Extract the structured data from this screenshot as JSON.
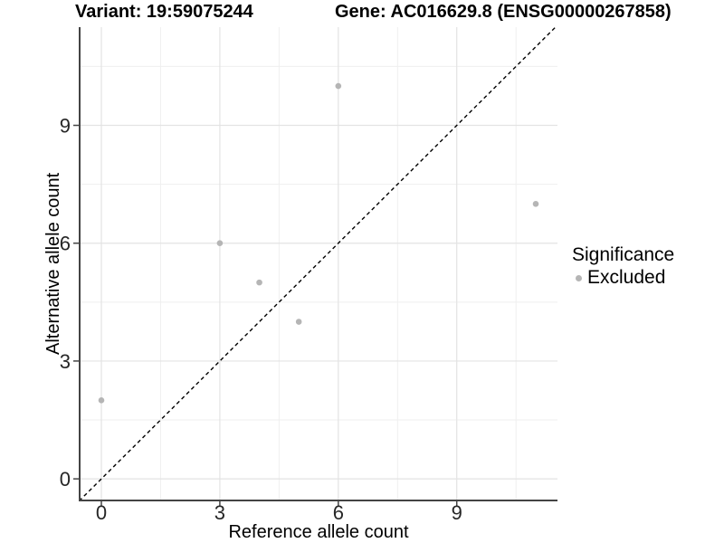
{
  "chart_data": {
    "type": "scatter",
    "title_left": "Variant: 19:59075244",
    "title_right": "Gene: AC016629.8 (ENSG00000267858)",
    "xlabel": "Reference allele count",
    "ylabel": "Alternative allele count",
    "x_ticks": [
      0,
      3,
      6,
      9
    ],
    "y_ticks": [
      0,
      3,
      6,
      9
    ],
    "x_minor_gridlines": [
      1.5,
      4.5,
      7.5,
      10.5
    ],
    "y_minor_gridlines": [
      1.5,
      4.5,
      7.5,
      10.5
    ],
    "xlim": [
      -0.55,
      11.55
    ],
    "ylim": [
      -0.55,
      11.5
    ],
    "grid": true,
    "series": [
      {
        "name": "Excluded",
        "color": "#b5b5b5",
        "points": [
          [
            0,
            2
          ],
          [
            3,
            6
          ],
          [
            4,
            5
          ],
          [
            5,
            4
          ],
          [
            6,
            10
          ],
          [
            11,
            7
          ]
        ]
      }
    ],
    "point_radius_px": 3.3,
    "reference_line": {
      "equation": "y = x",
      "style": "dashed",
      "color": "#000000"
    },
    "legend": {
      "title": "Significance",
      "position": "right",
      "entries": [
        {
          "label": "Excluded",
          "color": "#b5b5b5",
          "marker": "circle"
        }
      ]
    },
    "style_colors": {
      "background": "#ffffff",
      "grid_major": "#e3e3e3",
      "grid_minor": "#efefef",
      "axis_line": "#444444",
      "tick_label": "#262626",
      "point": "#b5b5b5"
    }
  }
}
